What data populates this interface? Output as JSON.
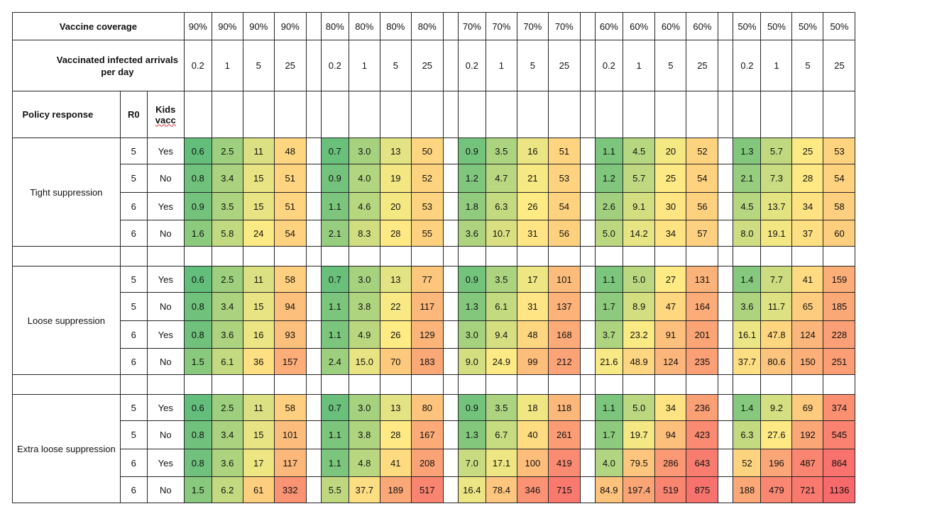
{
  "header": {
    "coverage_label": "Vaccine coverage",
    "arrivals_label": "Vaccinated infected arrivals per day",
    "groups": [
      {
        "coverage": [
          "90%",
          "90%",
          "90%",
          "90%"
        ],
        "arrivals": [
          "0.2",
          "1",
          "5",
          "25"
        ]
      },
      {
        "coverage": [
          "80%",
          "80%",
          "80%",
          "80%"
        ],
        "arrivals": [
          "0.2",
          "1",
          "5",
          "25"
        ]
      },
      {
        "coverage": [
          "70%",
          "70%",
          "70%",
          "70%"
        ],
        "arrivals": [
          "0.2",
          "1",
          "5",
          "25"
        ]
      },
      {
        "coverage": [
          "60%",
          "60%",
          "60%",
          "60%"
        ],
        "arrivals": [
          "0.2",
          "1",
          "5",
          "25"
        ]
      },
      {
        "coverage": [
          "50%",
          "50%",
          "50%",
          "50%"
        ],
        "arrivals": [
          "0.2",
          "1",
          "5",
          "25"
        ]
      }
    ],
    "col_policy": "Policy response",
    "col_r0": "R0",
    "col_kids": "Kids vacc"
  },
  "color_scale": {
    "low": "#63be7b",
    "mid": "#ffeb84",
    "high": "#f8696b"
  },
  "policies": [
    {
      "name": "Tight suppression",
      "rows": [
        {
          "r0": "5",
          "kids": "Yes",
          "values": [
            [
              "0.6",
              "2.5",
              "11",
              "48"
            ],
            [
              "0.7",
              "3.0",
              "13",
              "50"
            ],
            [
              "0.9",
              "3.5",
              "16",
              "51"
            ],
            [
              "1.1",
              "4.5",
              "20",
              "52"
            ],
            [
              "1.3",
              "5.7",
              "25",
              "53"
            ]
          ]
        },
        {
          "r0": "5",
          "kids": "No",
          "values": [
            [
              "0.8",
              "3.4",
              "15",
              "51"
            ],
            [
              "0.9",
              "4.0",
              "19",
              "52"
            ],
            [
              "1.2",
              "4.7",
              "21",
              "53"
            ],
            [
              "1.2",
              "5.7",
              "25",
              "54"
            ],
            [
              "2.1",
              "7.3",
              "28",
              "54"
            ]
          ]
        },
        {
          "r0": "6",
          "kids": "Yes",
          "values": [
            [
              "0.9",
              "3.5",
              "15",
              "51"
            ],
            [
              "1.1",
              "4.6",
              "20",
              "53"
            ],
            [
              "1.8",
              "6.3",
              "26",
              "54"
            ],
            [
              "2.6",
              "9.1",
              "30",
              "56"
            ],
            [
              "4.5",
              "13.7",
              "34",
              "58"
            ]
          ]
        },
        {
          "r0": "6",
          "kids": "No",
          "values": [
            [
              "1.6",
              "5.8",
              "24",
              "54"
            ],
            [
              "2.1",
              "8.3",
              "28",
              "55"
            ],
            [
              "3.6",
              "10.7",
              "31",
              "56"
            ],
            [
              "5.0",
              "14.2",
              "34",
              "57"
            ],
            [
              "8.0",
              "19.1",
              "37",
              "60"
            ]
          ]
        }
      ]
    },
    {
      "name": "Loose suppression",
      "rows": [
        {
          "r0": "5",
          "kids": "Yes",
          "values": [
            [
              "0.6",
              "2.5",
              "11",
              "58"
            ],
            [
              "0.7",
              "3.0",
              "13",
              "77"
            ],
            [
              "0.9",
              "3.5",
              "17",
              "101"
            ],
            [
              "1.1",
              "5.0",
              "27",
              "131"
            ],
            [
              "1.4",
              "7.7",
              "41",
              "159"
            ]
          ]
        },
        {
          "r0": "5",
          "kids": "No",
          "values": [
            [
              "0.8",
              "3.4",
              "15",
              "94"
            ],
            [
              "1.1",
              "3.8",
              "22",
              "117"
            ],
            [
              "1.3",
              "6.1",
              "31",
              "137"
            ],
            [
              "1.7",
              "8.9",
              "47",
              "164"
            ],
            [
              "3.6",
              "11.7",
              "65",
              "185"
            ]
          ]
        },
        {
          "r0": "6",
          "kids": "Yes",
          "values": [
            [
              "0.8",
              "3.6",
              "16",
              "93"
            ],
            [
              "1.1",
              "4.9",
              "26",
              "129"
            ],
            [
              "3.0",
              "9.4",
              "48",
              "168"
            ],
            [
              "3.7",
              "23.2",
              "91",
              "201"
            ],
            [
              "16.1",
              "47.8",
              "124",
              "228"
            ]
          ]
        },
        {
          "r0": "6",
          "kids": "No",
          "values": [
            [
              "1.5",
              "6.1",
              "36",
              "157"
            ],
            [
              "2.4",
              "15.0",
              "70",
              "183"
            ],
            [
              "9.0",
              "24.9",
              "99",
              "212"
            ],
            [
              "21.6",
              "48.9",
              "124",
              "235"
            ],
            [
              "37.7",
              "80.6",
              "150",
              "251"
            ]
          ]
        }
      ]
    },
    {
      "name": "Extra loose suppression",
      "rows": [
        {
          "r0": "5",
          "kids": "Yes",
          "values": [
            [
              "0.6",
              "2.5",
              "11",
              "58"
            ],
            [
              "0.7",
              "3.0",
              "13",
              "80"
            ],
            [
              "0.9",
              "3.5",
              "18",
              "118"
            ],
            [
              "1.1",
              "5.0",
              "34",
              "236"
            ],
            [
              "1.4",
              "9.2",
              "69",
              "374"
            ]
          ]
        },
        {
          "r0": "5",
          "kids": "No",
          "values": [
            [
              "0.8",
              "3.4",
              "15",
              "101"
            ],
            [
              "1.1",
              "3.8",
              "28",
              "167"
            ],
            [
              "1.3",
              "6.7",
              "40",
              "261"
            ],
            [
              "1.7",
              "19.7",
              "94",
              "423"
            ],
            [
              "6.3",
              "27.6",
              "192",
              "545"
            ]
          ]
        },
        {
          "r0": "6",
          "kids": "Yes",
          "values": [
            [
              "0.8",
              "3.6",
              "17",
              "117"
            ],
            [
              "1.1",
              "4.8",
              "41",
              "208"
            ],
            [
              "7.0",
              "17.1",
              "100",
              "419"
            ],
            [
              "4.0",
              "79.5",
              "286",
              "643"
            ],
            [
              "52",
              "196",
              "487",
              "864"
            ]
          ]
        },
        {
          "r0": "6",
          "kids": "No",
          "values": [
            [
              "1.5",
              "6.2",
              "61",
              "332"
            ],
            [
              "5.5",
              "37.7",
              "189",
              "517"
            ],
            [
              "16.4",
              "78.4",
              "346",
              "715"
            ],
            [
              "84.9",
              "197.4",
              "519",
              "875"
            ],
            [
              "188",
              "479",
              "721",
              "1136"
            ]
          ]
        }
      ]
    }
  ]
}
